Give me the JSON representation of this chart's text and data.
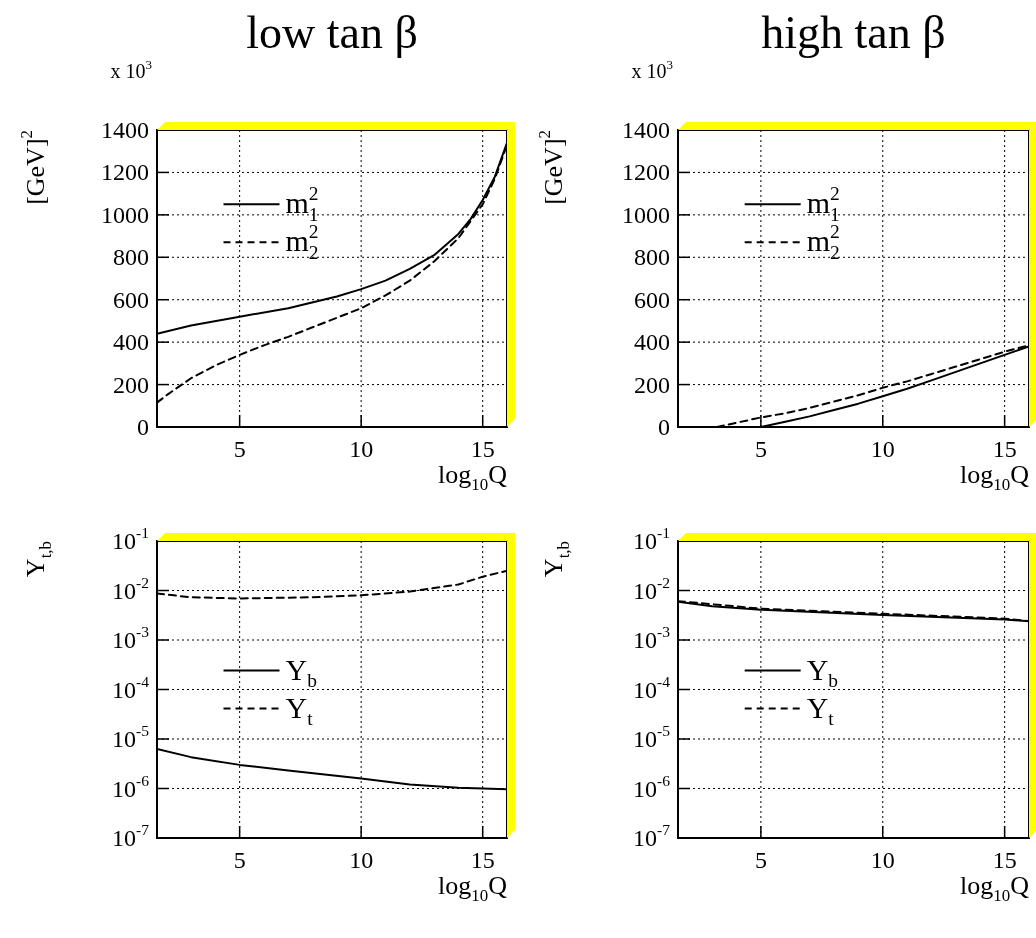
{
  "chart_data": [
    {
      "type": "line",
      "title": "low tan β",
      "xlabel": "log$_{10}$Q",
      "ylabel": "[GeV]$^{2}$",
      "annotations": [
        "x 10$^{3}$"
      ],
      "xlim": [
        1.6,
        16
      ],
      "xticks": [
        5,
        10,
        15
      ],
      "ylim": [
        0,
        1400
      ],
      "yticks": [
        0,
        200,
        400,
        600,
        800,
        1000,
        1200,
        1400
      ],
      "grid": true,
      "legend": "top left",
      "series": [
        {
          "name": "m$_{1}$$^{2}$",
          "color": "#000000",
          "line_style": "solid",
          "x": [
            1.6,
            3,
            5,
            7,
            9,
            10,
            11,
            12,
            13,
            14,
            14.5,
            15,
            15.5,
            16
          ],
          "values": [
            440,
            478,
            520,
            560,
            615,
            650,
            690,
            745,
            810,
            910,
            980,
            1070,
            1180,
            1340
          ]
        },
        {
          "name": "m$_{2}$$^{2}$",
          "color": "#000000",
          "line_style": "dashed",
          "x": [
            1.6,
            2,
            3,
            4,
            5,
            6,
            7,
            8,
            9,
            10,
            11,
            12,
            13,
            14,
            15,
            15.5,
            16
          ],
          "values": [
            115,
            150,
            230,
            290,
            340,
            385,
            425,
            470,
            515,
            560,
            620,
            690,
            780,
            890,
            1050,
            1170,
            1330
          ]
        }
      ]
    },
    {
      "type": "line",
      "title": "high tan β",
      "xlabel": "log$_{10}$Q",
      "ylabel": "[GeV]$^{2}$",
      "annotations": [
        "x 10$^{3}$"
      ],
      "xlim": [
        1.6,
        16
      ],
      "xticks": [
        5,
        10,
        15
      ],
      "ylim": [
        0,
        1400
      ],
      "yticks": [
        0,
        200,
        400,
        600,
        800,
        1000,
        1200,
        1400
      ],
      "grid": true,
      "legend": "top left",
      "series": [
        {
          "name": "m$_{1}$$^{2}$",
          "color": "#000000",
          "line_style": "solid",
          "x": [
            5,
            6,
            7,
            8,
            9,
            10,
            11,
            12,
            13,
            14,
            15,
            16
          ],
          "values": [
            0,
            25,
            50,
            80,
            110,
            145,
            180,
            220,
            260,
            300,
            340,
            380
          ]
        },
        {
          "name": "m$_{2}$$^{2}$",
          "color": "#000000",
          "line_style": "dashed",
          "x": [
            3.2,
            4,
            5,
            6,
            7,
            8,
            9,
            10,
            11,
            12,
            13,
            14,
            15,
            16
          ],
          "values": [
            0,
            20,
            45,
            65,
            90,
            120,
            150,
            185,
            215,
            250,
            285,
            320,
            355,
            385
          ]
        }
      ]
    },
    {
      "type": "line",
      "xlabel": "log$_{10}$Q",
      "ylabel": "Y$_{t,b}$",
      "log": true,
      "xlim": [
        1.6,
        16
      ],
      "xticks": [
        5,
        10,
        15
      ],
      "ylim": [
        1e-07,
        0.1
      ],
      "yticks": [
        {
          "value": 1e-07,
          "label": "10$^{-7}$"
        },
        {
          "value": 1e-06,
          "label": "10$^{-6}$"
        },
        {
          "value": 1e-05,
          "label": "10$^{-5}$"
        },
        {
          "value": 0.0001,
          "label": "10$^{-4}$"
        },
        {
          "value": 0.001,
          "label": "10$^{-3}$"
        },
        {
          "value": 0.01,
          "label": "10$^{-2}$"
        },
        {
          "value": 0.1,
          "label": "10$^{-1}$"
        }
      ],
      "grid": true,
      "legend": "left",
      "series": [
        {
          "name": "Y$_{b}$",
          "color": "#000000",
          "line_style": "solid",
          "x": [
            1.6,
            3,
            5,
            7,
            10,
            12,
            14,
            16
          ],
          "values": [
            6.3e-06,
            4.3e-06,
            3e-06,
            2.3e-06,
            1.6e-06,
            1.2e-06,
            1.03e-06,
            9.7e-07
          ]
        },
        {
          "name": "Y$_{t}$",
          "color": "#000000",
          "line_style": "dashed",
          "x": [
            1.6,
            3,
            5,
            8,
            10,
            12,
            14,
            15,
            16
          ],
          "values": [
            0.0087,
            0.0073,
            0.0069,
            0.0073,
            0.008,
            0.0095,
            0.0132,
            0.019,
            0.025
          ]
        }
      ]
    },
    {
      "type": "line",
      "xlabel": "log$_{10}$Q",
      "ylabel": "Y$_{t,b}$",
      "log": true,
      "xlim": [
        1.6,
        16
      ],
      "xticks": [
        5,
        10,
        15
      ],
      "ylim": [
        1e-07,
        0.1
      ],
      "yticks": [
        {
          "value": 1e-07,
          "label": "10$^{-7}$"
        },
        {
          "value": 1e-06,
          "label": "10$^{-6}$"
        },
        {
          "value": 1e-05,
          "label": "10$^{-5}$"
        },
        {
          "value": 0.0001,
          "label": "10$^{-4}$"
        },
        {
          "value": 0.001,
          "label": "10$^{-3}$"
        },
        {
          "value": 0.01,
          "label": "10$^{-2}$"
        },
        {
          "value": 0.1,
          "label": "10$^{-1}$"
        }
      ],
      "grid": true,
      "legend": "left",
      "series": [
        {
          "name": "Y$_{b}$",
          "color": "#000000",
          "line_style": "solid",
          "x": [
            1.6,
            3,
            5,
            10,
            15,
            16
          ],
          "values": [
            0.0059,
            0.0048,
            0.0041,
            0.0032,
            0.0026,
            0.0024
          ]
        },
        {
          "name": "Y$_{t}$",
          "color": "#000000",
          "line_style": "dashed",
          "x": [
            1.6,
            5,
            10,
            15,
            16
          ],
          "values": [
            0.0061,
            0.0043,
            0.0034,
            0.0027,
            0.0024
          ]
        }
      ]
    }
  ]
}
